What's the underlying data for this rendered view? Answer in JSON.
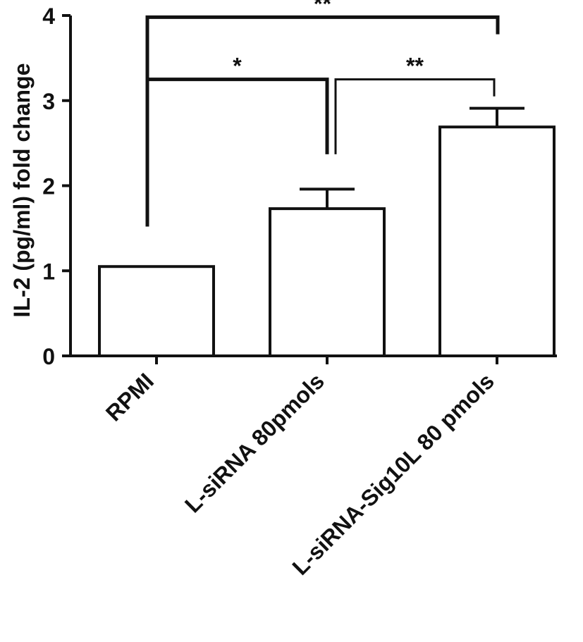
{
  "chart_data": {
    "type": "bar",
    "title": "",
    "xlabel": "",
    "ylabel": "IL-2 (pg/ml) fold change",
    "ylim": [
      0,
      4
    ],
    "yticks": [
      "0",
      "1",
      "2",
      "3",
      "4"
    ],
    "categories": [
      "RPMI",
      "L-siRNA 80pmols",
      "L-siRNA-Sig10L 80 pmols"
    ],
    "values": [
      1.05,
      1.73,
      2.69
    ],
    "errors": [
      0.0,
      0.23,
      0.22
    ],
    "grid": false,
    "legend": "none",
    "colors": {
      "bar_fill": "#ffffff",
      "stroke": "#111111"
    },
    "significance": [
      {
        "from": 0,
        "to": 2,
        "label": "**",
        "y": 3.98
      },
      {
        "from": 0,
        "to": 1,
        "label": "*",
        "y": 3.25
      },
      {
        "from": 1,
        "to": 2,
        "label": "**",
        "y": 3.25
      }
    ]
  }
}
